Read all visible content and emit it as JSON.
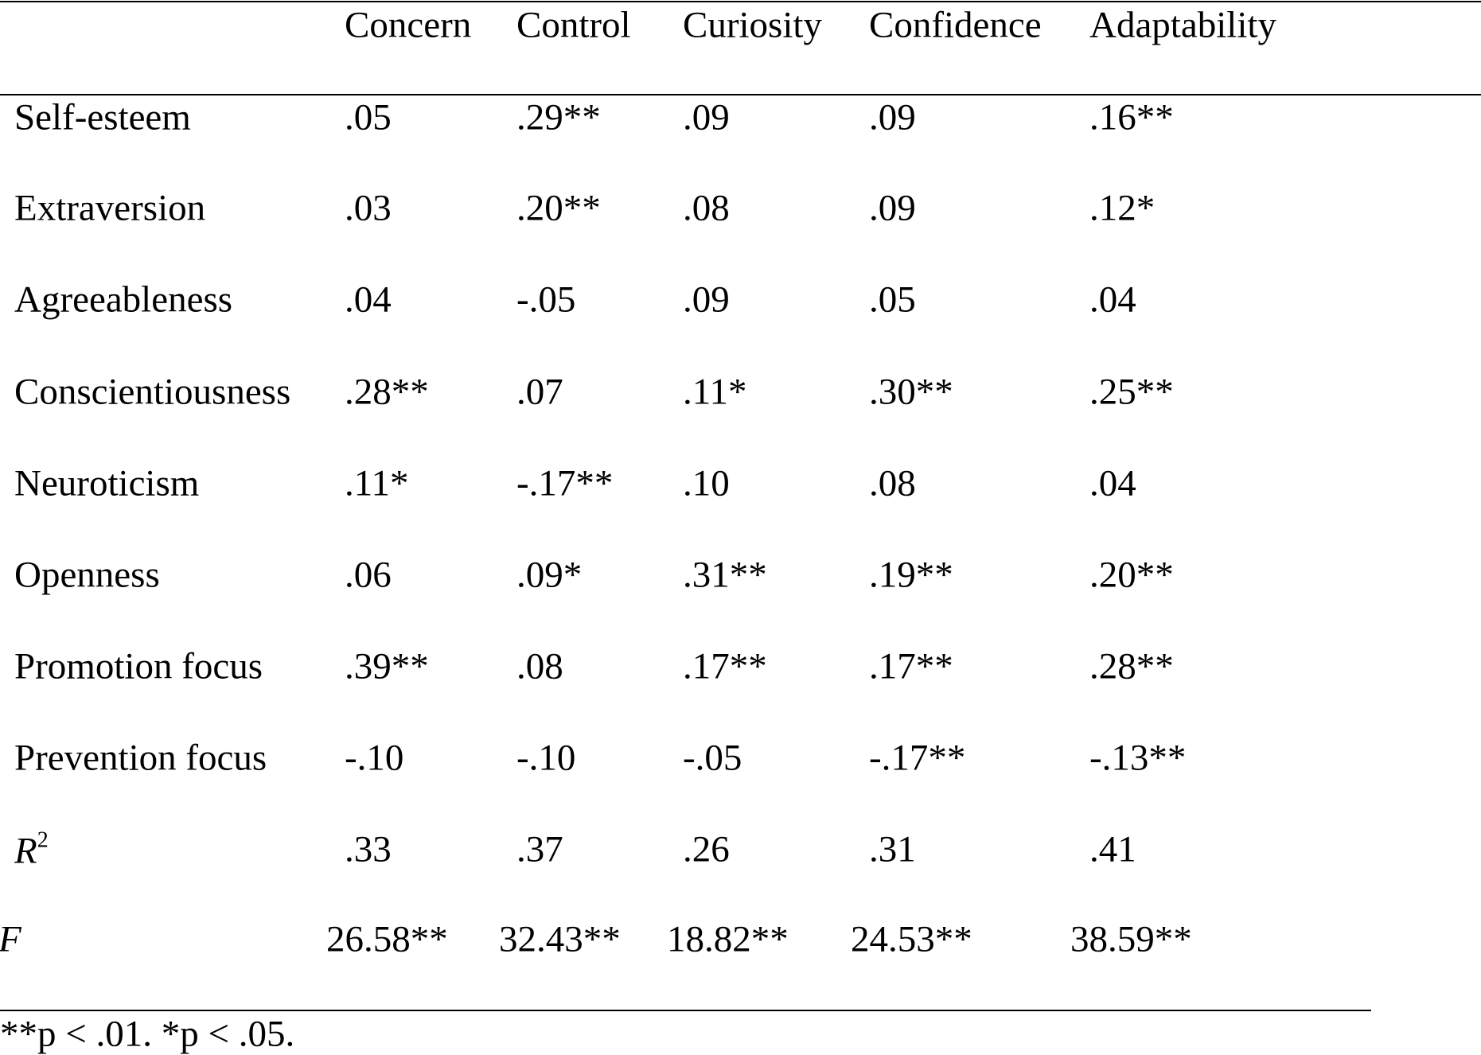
{
  "table": {
    "header": [
      "Concern",
      "Control",
      "Curiosity",
      "Confidence",
      "Adaptability"
    ],
    "rows": [
      {
        "label": "Self-esteem",
        "values": [
          ".05",
          ".29**",
          ".09",
          ".09",
          ".16**"
        ]
      },
      {
        "label": "Extraversion",
        "values": [
          ".03",
          ".20**",
          ".08",
          ".09",
          ".12*"
        ]
      },
      {
        "label": "Agreeableness",
        "values": [
          ".04",
          "-.05",
          ".09",
          ".05",
          ".04"
        ]
      },
      {
        "label": "Conscientiousness",
        "values": [
          ".28**",
          ".07",
          ".11*",
          ".30**",
          ".25**"
        ]
      },
      {
        "label": "Neuroticism",
        "values": [
          ".11*",
          "-.17**",
          ".10",
          ".08",
          ".04"
        ]
      },
      {
        "label": "Openness",
        "values": [
          ".06",
          ".09*",
          ".31**",
          ".19**",
          ".20**"
        ]
      },
      {
        "label": "Promotion focus",
        "values": [
          ".39**",
          ".08",
          ".17**",
          ".17**",
          ".28**"
        ]
      },
      {
        "label": "Prevention focus",
        "values": [
          "-.10",
          "-.10",
          "-.05",
          "-.17**",
          "-.13**"
        ]
      },
      {
        "label": "R",
        "label_sup": "2",
        "italic": true,
        "values": [
          ".33",
          ".37",
          ".26",
          ".31",
          ".41"
        ]
      },
      {
        "label": "F",
        "italic": true,
        "values": [
          "26.58**",
          "32.43**",
          "18.82**",
          "24.53**",
          "38.59**"
        ]
      }
    ],
    "note": "**p < .01. *p < .05."
  }
}
